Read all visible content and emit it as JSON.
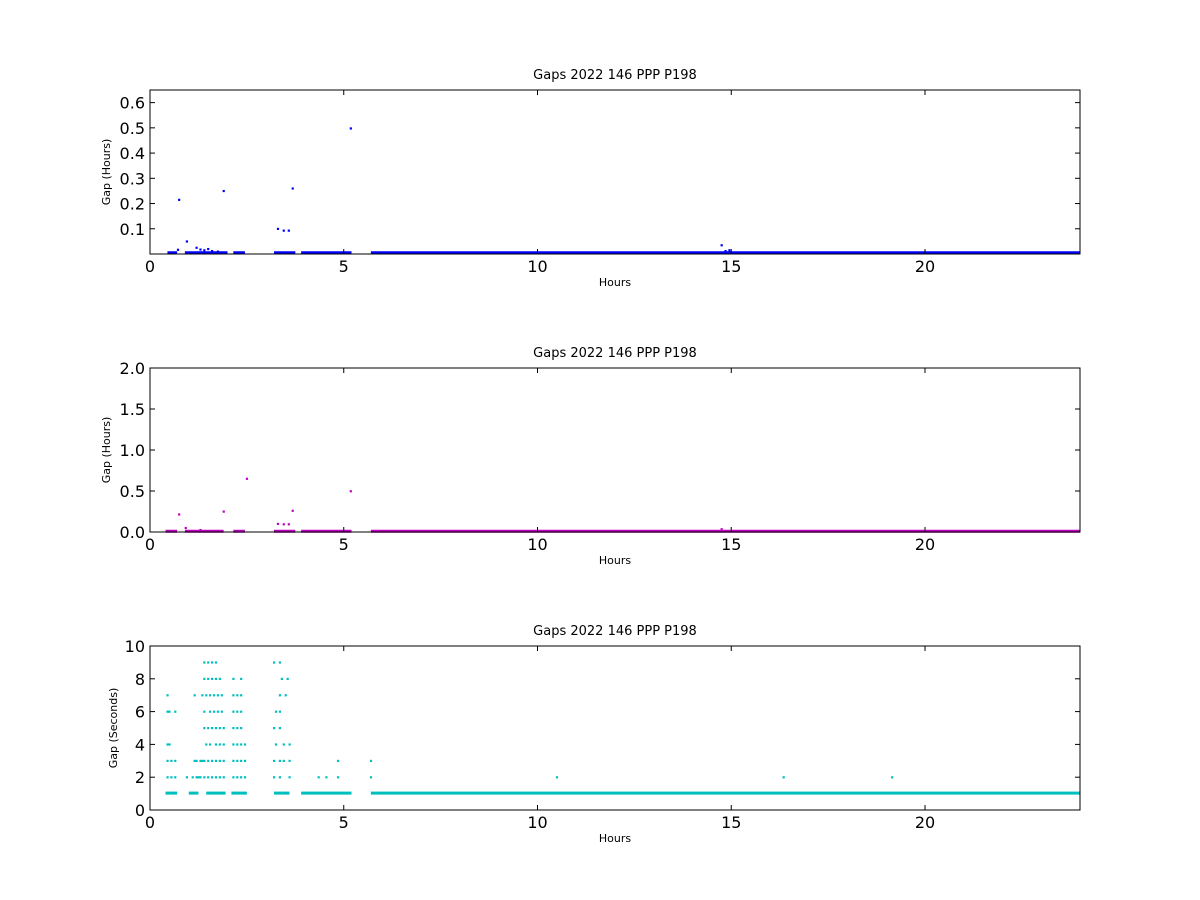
{
  "chart_data": [
    {
      "type": "scatter",
      "title": "Gaps 2022 146 PPP  P198",
      "xlabel": "Hours",
      "ylabel": "Gap (Hours)",
      "xlim": [
        0,
        24
      ],
      "ylim": [
        0,
        0.65
      ],
      "xticks": [
        0,
        5,
        10,
        15,
        20
      ],
      "yticks": [
        0.1,
        0.2,
        0.3,
        0.4,
        0.5,
        0.6
      ],
      "ytick_labels": [
        "0.1",
        "0.2",
        "0.3",
        "0.4",
        "0.5",
        "0.6"
      ],
      "grid": false,
      "color": "#0000ff",
      "series": [
        {
          "dense_ranges": [
            [
              0.45,
              0.7,
              0.003
            ],
            [
              0.9,
              2.0,
              0.003
            ],
            [
              2.15,
              2.45,
              0.003
            ],
            [
              3.2,
              3.75,
              0.003
            ],
            [
              3.9,
              5.2,
              0.003
            ],
            [
              5.7,
              24.0,
              0.003
            ]
          ],
          "points": [
            [
              0.72,
              0.017
            ],
            [
              0.75,
              0.215
            ],
            [
              0.95,
              0.05
            ],
            [
              1.2,
              0.025
            ],
            [
              1.3,
              0.018
            ],
            [
              1.4,
              0.015
            ],
            [
              1.5,
              0.02
            ],
            [
              1.6,
              0.012
            ],
            [
              1.75,
              0.01
            ],
            [
              1.9,
              0.25
            ],
            [
              3.3,
              0.1
            ],
            [
              3.45,
              0.093
            ],
            [
              3.58,
              0.093
            ],
            [
              3.68,
              0.26
            ],
            [
              5.18,
              0.498
            ],
            [
              14.75,
              0.035
            ],
            [
              14.85,
              0.012
            ],
            [
              14.95,
              0.015
            ]
          ]
        }
      ]
    },
    {
      "type": "scatter",
      "title": "Gaps 2022 146 PPP  P198",
      "xlabel": "Hours",
      "ylabel": "Gap (Hours)",
      "xlim": [
        0,
        24
      ],
      "ylim": [
        0,
        2
      ],
      "xticks": [
        0,
        5,
        10,
        15,
        20
      ],
      "yticks": [
        0.0,
        0.5,
        1.0,
        1.5,
        2.0
      ],
      "ytick_labels": [
        "0.0",
        "0.5",
        "1.0",
        "1.5",
        "2.0"
      ],
      "grid": false,
      "color": "#bf00bf",
      "series": [
        {
          "dense_ranges": [
            [
              0.4,
              0.7,
              0.003
            ],
            [
              0.9,
              1.9,
              0.003
            ],
            [
              2.15,
              2.45,
              0.003
            ],
            [
              3.2,
              3.75,
              0.003
            ],
            [
              3.9,
              5.2,
              0.003
            ],
            [
              5.7,
              24.0,
              0.003
            ]
          ],
          "points": [
            [
              0.75,
              0.215
            ],
            [
              0.92,
              0.05
            ],
            [
              1.3,
              0.025
            ],
            [
              1.9,
              0.25
            ],
            [
              2.5,
              0.65
            ],
            [
              3.3,
              0.1
            ],
            [
              3.45,
              0.095
            ],
            [
              3.58,
              0.095
            ],
            [
              3.68,
              0.26
            ],
            [
              5.18,
              0.498
            ],
            [
              14.75,
              0.035
            ]
          ]
        }
      ]
    },
    {
      "type": "scatter",
      "title": "Gaps 2022 146 PPP  P198",
      "xlabel": "Hours",
      "ylabel": "Gap (Seconds)",
      "xlim": [
        0,
        24
      ],
      "ylim": [
        0,
        10
      ],
      "xticks": [
        0,
        5,
        10,
        15,
        20
      ],
      "yticks": [
        0,
        2,
        4,
        6,
        8,
        10
      ],
      "ytick_labels": [
        "0",
        "2",
        "4",
        "6",
        "8",
        "10"
      ],
      "grid": false,
      "color": "#00bfbf",
      "series": [
        {
          "dense_ranges": [
            [
              0.4,
              0.7,
              1
            ],
            [
              1.0,
              1.25,
              1
            ],
            [
              1.45,
              1.95,
              1
            ],
            [
              2.1,
              2.5,
              1
            ],
            [
              3.2,
              3.6,
              1
            ],
            [
              3.9,
              5.2,
              1
            ],
            [
              5.7,
              24.0,
              1
            ]
          ],
          "points": [
            [
              0.45,
              7
            ],
            [
              0.45,
              6
            ],
            [
              0.5,
              6
            ],
            [
              0.65,
              6
            ],
            [
              0.45,
              4
            ],
            [
              0.5,
              4
            ],
            [
              0.45,
              3
            ],
            [
              0.55,
              3
            ],
            [
              0.65,
              3
            ],
            [
              0.45,
              2
            ],
            [
              0.55,
              2
            ],
            [
              0.65,
              2
            ],
            [
              1.15,
              7
            ],
            [
              1.15,
              3
            ],
            [
              1.2,
              3
            ],
            [
              0.95,
              2
            ],
            [
              1.1,
              2
            ],
            [
              1.2,
              2
            ],
            [
              1.25,
              2
            ],
            [
              1.3,
              2
            ],
            [
              1.3,
              3
            ],
            [
              1.35,
              3
            ],
            [
              1.35,
              7
            ],
            [
              1.45,
              7
            ],
            [
              1.4,
              9
            ],
            [
              1.5,
              9
            ],
            [
              1.6,
              9
            ],
            [
              1.7,
              9
            ],
            [
              1.4,
              8
            ],
            [
              1.5,
              8
            ],
            [
              1.6,
              8
            ],
            [
              1.7,
              8
            ],
            [
              1.8,
              8
            ],
            [
              1.4,
              6
            ],
            [
              1.55,
              6
            ],
            [
              1.65,
              6
            ],
            [
              1.75,
              6
            ],
            [
              1.85,
              6
            ],
            [
              1.4,
              5
            ],
            [
              1.5,
              5
            ],
            [
              1.6,
              5
            ],
            [
              1.7,
              5
            ],
            [
              1.8,
              5
            ],
            [
              1.9,
              5
            ],
            [
              1.45,
              4
            ],
            [
              1.55,
              4
            ],
            [
              1.7,
              4
            ],
            [
              1.8,
              4
            ],
            [
              1.9,
              4
            ],
            [
              1.4,
              3
            ],
            [
              1.5,
              3
            ],
            [
              1.6,
              3
            ],
            [
              1.7,
              3
            ],
            [
              1.8,
              3
            ],
            [
              1.9,
              3
            ],
            [
              1.4,
              2
            ],
            [
              1.5,
              2
            ],
            [
              1.6,
              2
            ],
            [
              1.7,
              2
            ],
            [
              1.8,
              2
            ],
            [
              1.9,
              2
            ],
            [
              1.55,
              7
            ],
            [
              1.65,
              7
            ],
            [
              1.75,
              7
            ],
            [
              1.85,
              7
            ],
            [
              2.15,
              8
            ],
            [
              2.35,
              8
            ],
            [
              2.15,
              7
            ],
            [
              2.25,
              7
            ],
            [
              2.35,
              7
            ],
            [
              2.15,
              6
            ],
            [
              2.25,
              6
            ],
            [
              2.35,
              6
            ],
            [
              2.15,
              5
            ],
            [
              2.25,
              5
            ],
            [
              2.35,
              5
            ],
            [
              2.15,
              4
            ],
            [
              2.25,
              4
            ],
            [
              2.35,
              4
            ],
            [
              2.45,
              4
            ],
            [
              2.15,
              3
            ],
            [
              2.25,
              3
            ],
            [
              2.35,
              3
            ],
            [
              2.45,
              3
            ],
            [
              2.15,
              2
            ],
            [
              2.25,
              2
            ],
            [
              2.35,
              2
            ],
            [
              2.45,
              2
            ],
            [
              3.2,
              9
            ],
            [
              3.35,
              9
            ],
            [
              3.4,
              8
            ],
            [
              3.55,
              8
            ],
            [
              3.35,
              7
            ],
            [
              3.5,
              7
            ],
            [
              3.25,
              6
            ],
            [
              3.35,
              6
            ],
            [
              3.2,
              5
            ],
            [
              3.35,
              5
            ],
            [
              3.25,
              4
            ],
            [
              3.45,
              4
            ],
            [
              3.6,
              4
            ],
            [
              3.2,
              3
            ],
            [
              3.35,
              3
            ],
            [
              3.45,
              3
            ],
            [
              3.6,
              3
            ],
            [
              3.2,
              2
            ],
            [
              3.35,
              2
            ],
            [
              3.6,
              2
            ],
            [
              4.35,
              2
            ],
            [
              4.55,
              2
            ],
            [
              4.85,
              3
            ],
            [
              4.85,
              2
            ],
            [
              5.7,
              3
            ],
            [
              5.7,
              2
            ],
            [
              10.5,
              2
            ],
            [
              16.35,
              2
            ],
            [
              19.15,
              2
            ]
          ]
        }
      ]
    }
  ]
}
